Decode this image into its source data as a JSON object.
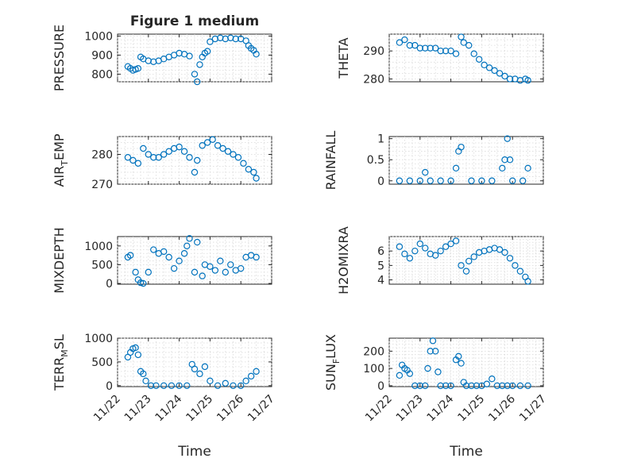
{
  "figure": {
    "title": "Figure 1 medium",
    "xlabel": "Time",
    "date_ticks": [
      "11/22",
      "11/23",
      "11/24",
      "11/25",
      "11/26",
      "11/27"
    ]
  },
  "colors": {
    "marker": "#0072BD",
    "axes": "#262626",
    "grid": "#d9d9d9"
  },
  "chart_data": [
    {
      "id": "pressure",
      "type": "scatter",
      "title": "Figure 1 medium",
      "ylabel": "PRESSURE",
      "xlabel": "",
      "ylim": [
        760,
        1010
      ],
      "yticks": [
        800,
        900,
        1000
      ],
      "xlim": [
        "11/22",
        "11/27"
      ],
      "grid": true,
      "x": [
        "11/22 08:00",
        "11/22 10:00",
        "11/22 12:00",
        "11/22 14:00",
        "11/22 16:00",
        "11/22 18:00",
        "11/22 20:00",
        "11/23 00:00",
        "11/23 04:00",
        "11/23 08:00",
        "11/23 12:00",
        "11/23 16:00",
        "11/23 20:00",
        "11/24 00:00",
        "11/24 04:00",
        "11/24 08:00",
        "11/24 12:00",
        "11/24 14:00",
        "11/24 16:00",
        "11/24 18:00",
        "11/24 20:00",
        "11/24 22:00",
        "11/25 00:00",
        "11/25 04:00",
        "11/25 08:00",
        "11/25 12:00",
        "11/25 16:00",
        "11/25 20:00",
        "11/26 00:00",
        "11/26 04:00",
        "11/26 06:00",
        "11/26 08:00",
        "11/26 10:00",
        "11/26 12:00"
      ],
      "y": [
        840,
        830,
        820,
        825,
        830,
        890,
        880,
        870,
        865,
        870,
        880,
        890,
        900,
        910,
        905,
        895,
        800,
        760,
        850,
        890,
        910,
        920,
        970,
        985,
        990,
        985,
        990,
        985,
        985,
        975,
        950,
        935,
        925,
        905
      ]
    },
    {
      "id": "theta",
      "type": "scatter",
      "ylabel": "THETA",
      "xlabel": "",
      "ylim": [
        279,
        296
      ],
      "yticks": [
        280,
        290
      ],
      "xlim": [
        "11/22",
        "11/27"
      ],
      "grid": true,
      "x": [
        "11/22 08:00",
        "11/22 12:00",
        "11/22 16:00",
        "11/22 20:00",
        "11/23 00:00",
        "11/23 04:00",
        "11/23 08:00",
        "11/23 12:00",
        "11/23 16:00",
        "11/23 20:00",
        "11/24 00:00",
        "11/24 04:00",
        "11/24 08:00",
        "11/24 10:00",
        "11/24 14:00",
        "11/24 18:00",
        "11/24 22:00",
        "11/25 02:00",
        "11/25 06:00",
        "11/25 10:00",
        "11/25 14:00",
        "11/25 18:00",
        "11/25 22:00",
        "11/26 02:00",
        "11/26 06:00",
        "11/26 10:00",
        "11/26 12:00"
      ],
      "y": [
        293,
        294,
        292,
        292,
        291,
        291,
        291,
        291,
        290,
        290,
        290,
        289,
        295,
        293,
        292,
        289,
        287,
        285,
        284,
        283,
        282,
        281,
        280,
        280,
        279.5,
        280,
        279.5
      ]
    },
    {
      "id": "air_temp",
      "type": "scatter",
      "ylabel": "AIR_TEMP",
      "xlabel": "",
      "ylim": [
        270,
        286
      ],
      "yticks": [
        270,
        280
      ],
      "xlim": [
        "11/22",
        "11/27"
      ],
      "grid": true,
      "x": [
        "11/22 08:00",
        "11/22 12:00",
        "11/22 16:00",
        "11/22 20:00",
        "11/23 00:00",
        "11/23 04:00",
        "11/23 08:00",
        "11/23 12:00",
        "11/23 16:00",
        "11/23 20:00",
        "11/24 00:00",
        "11/24 04:00",
        "11/24 08:00",
        "11/24 12:00",
        "11/24 14:00",
        "11/24 18:00",
        "11/24 22:00",
        "11/25 02:00",
        "11/25 06:00",
        "11/25 10:00",
        "11/25 14:00",
        "11/25 18:00",
        "11/25 22:00",
        "11/26 02:00",
        "11/26 06:00",
        "11/26 10:00",
        "11/26 12:00"
      ],
      "y": [
        279,
        278,
        277,
        282,
        280,
        279,
        279,
        280,
        281,
        282,
        282.5,
        281,
        279,
        274,
        278,
        283,
        284,
        285,
        283,
        282,
        281,
        280,
        279,
        277,
        275,
        274,
        272
      ]
    },
    {
      "id": "rainfall",
      "type": "scatter",
      "ylabel": "RAINFALL",
      "xlabel": "",
      "ylim": [
        -0.08,
        1.05
      ],
      "yticks": [
        0,
        0.5,
        1
      ],
      "xlim": [
        "11/22",
        "11/27"
      ],
      "grid": true,
      "x": [
        "11/22 08:00",
        "11/22 16:00",
        "11/23 00:00",
        "11/23 04:00",
        "11/23 08:00",
        "11/23 16:00",
        "11/24 00:00",
        "11/24 04:00",
        "11/24 06:00",
        "11/24 08:00",
        "11/24 16:00",
        "11/25 00:00",
        "11/25 08:00",
        "11/25 16:00",
        "11/25 18:00",
        "11/25 20:00",
        "11/25 22:00",
        "11/26 00:00",
        "11/26 08:00",
        "11/26 12:00"
      ],
      "y": [
        0,
        0,
        0,
        0.2,
        0,
        0,
        0,
        0.3,
        0.7,
        0.8,
        0,
        0,
        0,
        0.3,
        0.5,
        1.0,
        0.5,
        0,
        0,
        0.3
      ]
    },
    {
      "id": "mixdepth",
      "type": "scatter",
      "ylabel": "MIXDEPTH",
      "xlabel": "",
      "ylim": [
        -20,
        1250
      ],
      "yticks": [
        0,
        500,
        1000
      ],
      "xlim": [
        "11/22",
        "11/27"
      ],
      "grid": true,
      "x": [
        "11/22 08:00",
        "11/22 10:00",
        "11/22 14:00",
        "11/22 16:00",
        "11/22 18:00",
        "11/22 20:00",
        "11/23 00:00",
        "11/23 04:00",
        "11/23 08:00",
        "11/23 12:00",
        "11/23 16:00",
        "11/23 20:00",
        "11/24 00:00",
        "11/24 04:00",
        "11/24 06:00",
        "11/24 08:00",
        "11/24 12:00",
        "11/24 14:00",
        "11/24 18:00",
        "11/24 20:00",
        "11/25 00:00",
        "11/25 04:00",
        "11/25 08:00",
        "11/25 12:00",
        "11/25 16:00",
        "11/25 20:00",
        "11/26 00:00",
        "11/26 04:00",
        "11/26 08:00",
        "11/26 12:00"
      ],
      "y": [
        700,
        750,
        300,
        100,
        20,
        0,
        300,
        900,
        800,
        850,
        700,
        400,
        600,
        800,
        1000,
        1200,
        300,
        1100,
        200,
        500,
        450,
        350,
        600,
        300,
        500,
        350,
        400,
        700,
        750,
        700
      ]
    },
    {
      "id": "h2omixra",
      "type": "scatter",
      "ylabel": "H2OMIXRA",
      "xlabel": "",
      "ylim": [
        3.7,
        7.0
      ],
      "yticks": [
        4,
        5,
        6
      ],
      "xlim": [
        "11/22",
        "11/27"
      ],
      "grid": true,
      "x": [
        "11/22 08:00",
        "11/22 12:00",
        "11/22 16:00",
        "11/22 20:00",
        "11/23 00:00",
        "11/23 04:00",
        "11/23 08:00",
        "11/23 12:00",
        "11/23 16:00",
        "11/23 20:00",
        "11/24 00:00",
        "11/24 04:00",
        "11/24 08:00",
        "11/24 12:00",
        "11/24 14:00",
        "11/24 18:00",
        "11/24 22:00",
        "11/25 02:00",
        "11/25 06:00",
        "11/25 10:00",
        "11/25 14:00",
        "11/25 18:00",
        "11/25 22:00",
        "11/26 02:00",
        "11/26 06:00",
        "11/26 10:00",
        "11/26 12:00"
      ],
      "y": [
        6.3,
        5.8,
        5.5,
        6.0,
        6.5,
        6.2,
        5.8,
        5.7,
        6.0,
        6.3,
        6.5,
        6.7,
        5.0,
        4.6,
        5.3,
        5.6,
        5.9,
        6.0,
        6.1,
        6.2,
        6.1,
        5.9,
        5.5,
        5.0,
        4.6,
        4.2,
        3.9
      ]
    },
    {
      "id": "terr_msl",
      "type": "scatter",
      "ylabel": "TERR_MSL",
      "xlabel": "Time",
      "ylim": [
        -20,
        1000
      ],
      "yticks": [
        0,
        500,
        1000
      ],
      "xlim": [
        "11/22",
        "11/27"
      ],
      "grid": true,
      "x": [
        "11/22 08:00",
        "11/22 10:00",
        "11/22 12:00",
        "11/22 14:00",
        "11/22 16:00",
        "11/22 18:00",
        "11/22 20:00",
        "11/22 22:00",
        "11/23 02:00",
        "11/23 06:00",
        "11/23 12:00",
        "11/23 18:00",
        "11/24 00:00",
        "11/24 06:00",
        "11/24 10:00",
        "11/24 12:00",
        "11/24 16:00",
        "11/24 20:00",
        "11/25 00:00",
        "11/25 06:00",
        "11/25 12:00",
        "11/25 18:00",
        "11/26 00:00",
        "11/26 04:00",
        "11/26 08:00",
        "11/26 12:00"
      ],
      "y": [
        600,
        700,
        780,
        800,
        650,
        300,
        250,
        100,
        0,
        0,
        0,
        0,
        0,
        0,
        450,
        350,
        250,
        400,
        100,
        0,
        50,
        0,
        0,
        100,
        200,
        300
      ]
    },
    {
      "id": "sun_flux",
      "type": "scatter",
      "ylabel": "SUN_FLUX",
      "xlabel": "Time",
      "ylim": [
        -5,
        275
      ],
      "yticks": [
        0,
        100,
        200
      ],
      "xlim": [
        "11/22",
        "11/27"
      ],
      "grid": true,
      "x": [
        "11/22 08:00",
        "11/22 10:00",
        "11/22 12:00",
        "11/22 14:00",
        "11/22 16:00",
        "11/22 20:00",
        "11/23 00:00",
        "11/23 04:00",
        "11/23 06:00",
        "11/23 08:00",
        "11/23 10:00",
        "11/23 12:00",
        "11/23 14:00",
        "11/23 16:00",
        "11/23 20:00",
        "11/24 00:00",
        "11/24 04:00",
        "11/24 06:00",
        "11/24 08:00",
        "11/24 10:00",
        "11/24 12:00",
        "11/24 16:00",
        "11/24 20:00",
        "11/25 00:00",
        "11/25 04:00",
        "11/25 08:00",
        "11/25 12:00",
        "11/25 16:00",
        "11/25 20:00",
        "11/26 00:00",
        "11/26 06:00",
        "11/26 12:00"
      ],
      "y": [
        60,
        120,
        100,
        90,
        70,
        0,
        0,
        0,
        100,
        200,
        260,
        200,
        80,
        0,
        0,
        0,
        150,
        170,
        130,
        20,
        0,
        0,
        0,
        0,
        10,
        40,
        0,
        0,
        0,
        0,
        0,
        0
      ]
    }
  ]
}
